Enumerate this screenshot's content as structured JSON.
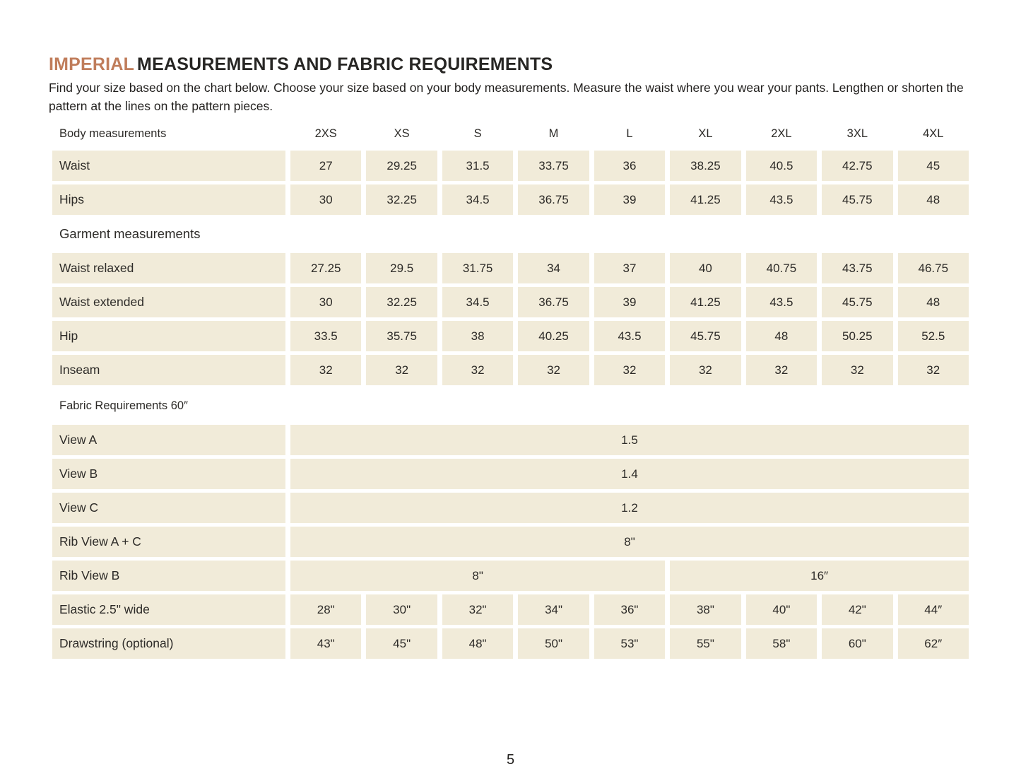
{
  "header": {
    "title_highlight": "IMPERIAL",
    "title_rest": "MEASUREMENTS AND FABRIC REQUIREMENTS",
    "intro": "Find your size based on the chart below. Choose your size based on your body measurements. Measure the waist where you wear your pants. Lengthen or shorten the pattern at the lines on the pattern pieces."
  },
  "colors": {
    "accent": "#c07d5b",
    "cell_background": "#f1ebd9",
    "text": "#2d2b28"
  },
  "table": {
    "header_label": "Body measurements",
    "sizes": [
      "2XS",
      "XS",
      "S",
      "M",
      "L",
      "XL",
      "2XL",
      "3XL",
      "4XL"
    ],
    "body_rows": [
      {
        "label": "Waist",
        "values": [
          "27",
          "29.25",
          "31.5",
          "33.75",
          "36",
          "38.25",
          "40.5",
          "42.75",
          "45"
        ]
      },
      {
        "label": "Hips",
        "values": [
          "30",
          "32.25",
          "34.5",
          "36.75",
          "39",
          "41.25",
          "43.5",
          "45.75",
          "48"
        ]
      }
    ],
    "garment_section_label": "Garment measurements",
    "garment_rows": [
      {
        "label": "Waist relaxed",
        "values": [
          "27.25",
          "29.5",
          "31.75",
          "34",
          "37",
          "40",
          "40.75",
          "43.75",
          "46.75"
        ]
      },
      {
        "label": "Waist extended",
        "values": [
          "30",
          "32.25",
          "34.5",
          "36.75",
          "39",
          "41.25",
          "43.5",
          "45.75",
          "48"
        ]
      },
      {
        "label": "Hip",
        "values": [
          "33.5",
          "35.75",
          "38",
          "40.25",
          "43.5",
          "45.75",
          "48",
          "50.25",
          "52.5"
        ]
      },
      {
        "label": "Inseam",
        "values": [
          "32",
          "32",
          "32",
          "32",
          "32",
          "32",
          "32",
          "32",
          "32"
        ]
      }
    ],
    "fabric_section_label": "Fabric Requirements 60″",
    "fabric_full_rows": [
      {
        "label": "View A",
        "value": "1.5"
      },
      {
        "label": "View B",
        "value": "1.4"
      },
      {
        "label": "View C",
        "value": "1.2"
      },
      {
        "label": "Rib View A + C",
        "value": "8\""
      }
    ],
    "fabric_split_row": {
      "label": "Rib View B",
      "left_value": "8\"",
      "left_span_sizes": "2XS–L",
      "right_value": "16″",
      "right_span_sizes": "XL–4XL"
    },
    "fabric_value_rows": [
      {
        "label": "Elastic 2.5\" wide",
        "values": [
          "28\"",
          "30\"",
          "32\"",
          "34\"",
          "36\"",
          "38\"",
          "40\"",
          "42\"",
          "44″"
        ]
      },
      {
        "label": "Drawstring (optional)",
        "values": [
          "43\"",
          "45\"",
          "48\"",
          "50\"",
          "53\"",
          "55\"",
          "58\"",
          "60\"",
          "62″"
        ]
      }
    ]
  },
  "footer": {
    "page_number": "5"
  }
}
